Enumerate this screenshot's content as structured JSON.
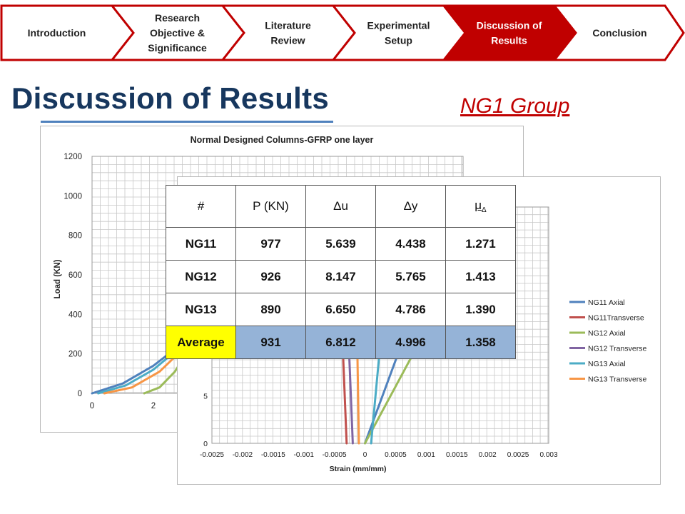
{
  "nav": {
    "steps": [
      {
        "lines": [
          "Introduction"
        ],
        "active": false
      },
      {
        "lines": [
          "Research",
          "Objective &",
          "Significance"
        ],
        "active": false
      },
      {
        "lines": [
          "Literature",
          "Review"
        ],
        "active": false
      },
      {
        "lines": [
          "Experimental",
          "Setup"
        ],
        "active": false
      },
      {
        "lines": [
          "Discussion of",
          "Results"
        ],
        "active": true
      },
      {
        "lines": [
          "Conclusion"
        ],
        "active": false
      }
    ],
    "colors": {
      "border": "#c00000",
      "active_fill": "#c00000",
      "text": "#1f1f1f",
      "active_text": "#ffffff"
    }
  },
  "page": {
    "title": "Discussion of Results",
    "group": "NG1 Group"
  },
  "table": {
    "headers": {
      "id": "#",
      "load": "P (KN)",
      "du": "Δu",
      "dy": "Δy",
      "mu": "μ",
      "mu_sub": "Δ"
    },
    "rows": [
      {
        "id": "NG11",
        "load": "977",
        "du": "5.639",
        "dy": "4.438",
        "mu": "1.271"
      },
      {
        "id": "NG12",
        "load": "926",
        "du": "8.147",
        "dy": "5.765",
        "mu": "1.413"
      },
      {
        "id": "NG13",
        "load": "890",
        "du": "6.650",
        "dy": "4.786",
        "mu": "1.390"
      },
      {
        "id": "Average",
        "load": "931",
        "du": "6.812",
        "dy": "4.996",
        "mu": "1.358"
      }
    ]
  },
  "chart_data": [
    {
      "type": "line",
      "title": "Normal Designed Columns-GFRP one layer",
      "ylabel": "Load (KN)",
      "ylim": [
        0,
        1200
      ],
      "y_ticks": [
        "0",
        "200",
        "400",
        "600",
        "800",
        "1000",
        "1200"
      ],
      "x_ticks": [
        "0",
        "2"
      ],
      "grid": true,
      "series": [
        {
          "color": "#4f81bd",
          "points": [
            [
              0.0,
              0
            ],
            [
              1.0,
              50
            ],
            [
              2.0,
              140
            ],
            [
              3.0,
              260
            ]
          ]
        },
        {
          "color": "#4bacc6",
          "points": [
            [
              0.2,
              0
            ],
            [
              1.1,
              40
            ],
            [
              2.0,
              120
            ],
            [
              3.0,
              250
            ]
          ]
        },
        {
          "color": "#f79646",
          "points": [
            [
              0.4,
              0
            ],
            [
              1.3,
              30
            ],
            [
              2.2,
              110
            ],
            [
              3.0,
              230
            ]
          ]
        },
        {
          "color": "#9bbb59",
          "points": [
            [
              1.7,
              0
            ],
            [
              2.2,
              30
            ],
            [
              2.7,
              110
            ],
            [
              3.1,
              210
            ]
          ]
        }
      ]
    },
    {
      "type": "line",
      "xlabel": "Strain (mm/mm)",
      "xlim": [
        -0.0025,
        0.003
      ],
      "x_ticks": [
        "-0.0025",
        "-0.002",
        "-0.0015",
        "-0.001",
        "-0.0005",
        "0",
        "0.0005",
        "0.001",
        "0.0015",
        "0.002",
        "0.0025",
        "0.003"
      ],
      "y_ticks": [
        "0",
        "5",
        "10",
        "15"
      ],
      "grid": true,
      "legend_position": "right",
      "series": [
        {
          "name": "NG11 Axial",
          "color": "#4f81bd",
          "points": [
            [
              0.0,
              0
            ],
            [
              0.0004,
              7
            ],
            [
              0.0008,
              14
            ],
            [
              0.0011,
              19
            ],
            [
              0.0014,
              25
            ]
          ]
        },
        {
          "name": "NG11Transverse",
          "color": "#c0504d",
          "points": [
            [
              -0.0003,
              0
            ],
            [
              -0.00035,
              8
            ],
            [
              -0.0004,
              16
            ],
            [
              -0.00045,
              22
            ],
            [
              -0.0005,
              25
            ]
          ]
        },
        {
          "name": "NG12 Axial",
          "color": "#9bbb59",
          "points": [
            [
              0.0,
              0
            ],
            [
              0.0005,
              6
            ],
            [
              0.001,
              12
            ],
            [
              0.0014,
              18
            ],
            [
              0.0018,
              25
            ]
          ]
        },
        {
          "name": "NG12 Transverse",
          "color": "#8064a2",
          "points": [
            [
              -0.0002,
              0
            ],
            [
              -0.00025,
              8
            ],
            [
              -0.0003,
              16
            ],
            [
              -0.00035,
              25
            ]
          ]
        },
        {
          "name": "NG13 Axial",
          "color": "#4bacc6",
          "points": [
            [
              0.0001,
              0
            ],
            [
              0.0002,
              7
            ],
            [
              0.0003,
              14
            ],
            [
              0.00045,
              20
            ],
            [
              0.0006,
              25
            ]
          ]
        },
        {
          "name": "NG13 Transverse",
          "color": "#f79646",
          "points": [
            [
              -0.0001,
              0
            ],
            [
              -0.00012,
              8
            ],
            [
              -0.00014,
              16
            ],
            [
              -0.00015,
              25
            ]
          ]
        }
      ]
    }
  ]
}
